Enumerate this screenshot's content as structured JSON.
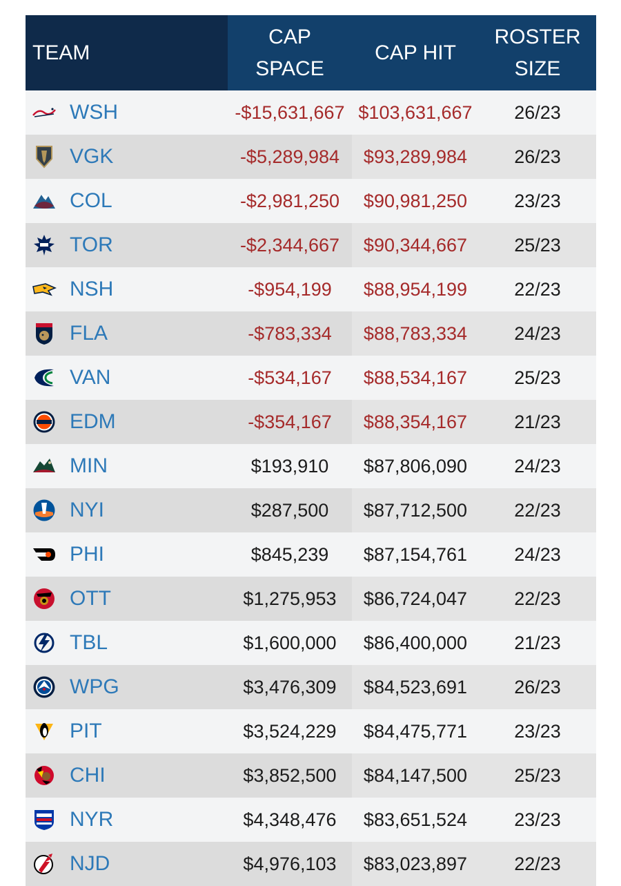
{
  "headers": {
    "team": "TEAM",
    "cap_space": [
      "CAP",
      "SPACE"
    ],
    "cap_hit": "CAP HIT",
    "roster_size": [
      "ROSTER",
      "SIZE"
    ]
  },
  "colors": {
    "header_team_bg": "#0f2a4a",
    "header_bg": "#12406b",
    "team_abbr": "#2d79b8",
    "negative": "#a52a2a",
    "positive": "#1b1b1b"
  },
  "rows": [
    {
      "team": "WSH",
      "logo": "capitals-logo",
      "cap_space": "-$15,631,667",
      "cap_hit": "$103,631,667",
      "roster": "26/23",
      "over_cap": true
    },
    {
      "team": "VGK",
      "logo": "golden-knights-logo",
      "cap_space": "-$5,289,984",
      "cap_hit": "$93,289,984",
      "roster": "26/23",
      "over_cap": true
    },
    {
      "team": "COL",
      "logo": "avalanche-logo",
      "cap_space": "-$2,981,250",
      "cap_hit": "$90,981,250",
      "roster": "23/23",
      "over_cap": true
    },
    {
      "team": "TOR",
      "logo": "maple-leafs-logo",
      "cap_space": "-$2,344,667",
      "cap_hit": "$90,344,667",
      "roster": "25/23",
      "over_cap": true
    },
    {
      "team": "NSH",
      "logo": "predators-logo",
      "cap_space": "-$954,199",
      "cap_hit": "$88,954,199",
      "roster": "22/23",
      "over_cap": true
    },
    {
      "team": "FLA",
      "logo": "panthers-logo",
      "cap_space": "-$783,334",
      "cap_hit": "$88,783,334",
      "roster": "24/23",
      "over_cap": true
    },
    {
      "team": "VAN",
      "logo": "canucks-logo",
      "cap_space": "-$534,167",
      "cap_hit": "$88,534,167",
      "roster": "25/23",
      "over_cap": true
    },
    {
      "team": "EDM",
      "logo": "oilers-logo",
      "cap_space": "-$354,167",
      "cap_hit": "$88,354,167",
      "roster": "21/23",
      "over_cap": true
    },
    {
      "team": "MIN",
      "logo": "wild-logo",
      "cap_space": "$193,910",
      "cap_hit": "$87,806,090",
      "roster": "24/23",
      "over_cap": false
    },
    {
      "team": "NYI",
      "logo": "islanders-logo",
      "cap_space": "$287,500",
      "cap_hit": "$87,712,500",
      "roster": "22/23",
      "over_cap": false
    },
    {
      "team": "PHI",
      "logo": "flyers-logo",
      "cap_space": "$845,239",
      "cap_hit": "$87,154,761",
      "roster": "24/23",
      "over_cap": false
    },
    {
      "team": "OTT",
      "logo": "senators-logo",
      "cap_space": "$1,275,953",
      "cap_hit": "$86,724,047",
      "roster": "22/23",
      "over_cap": false
    },
    {
      "team": "TBL",
      "logo": "lightning-logo",
      "cap_space": "$1,600,000",
      "cap_hit": "$86,400,000",
      "roster": "21/23",
      "over_cap": false
    },
    {
      "team": "WPG",
      "logo": "jets-logo",
      "cap_space": "$3,476,309",
      "cap_hit": "$84,523,691",
      "roster": "26/23",
      "over_cap": false
    },
    {
      "team": "PIT",
      "logo": "penguins-logo",
      "cap_space": "$3,524,229",
      "cap_hit": "$84,475,771",
      "roster": "23/23",
      "over_cap": false
    },
    {
      "team": "CHI",
      "logo": "blackhawks-logo",
      "cap_space": "$3,852,500",
      "cap_hit": "$84,147,500",
      "roster": "25/23",
      "over_cap": false
    },
    {
      "team": "NYR",
      "logo": "rangers-logo",
      "cap_space": "$4,348,476",
      "cap_hit": "$83,651,524",
      "roster": "23/23",
      "over_cap": false
    },
    {
      "team": "NJD",
      "logo": "devils-logo",
      "cap_space": "$4,976,103",
      "cap_hit": "$83,023,897",
      "roster": "22/23",
      "over_cap": false
    }
  ]
}
